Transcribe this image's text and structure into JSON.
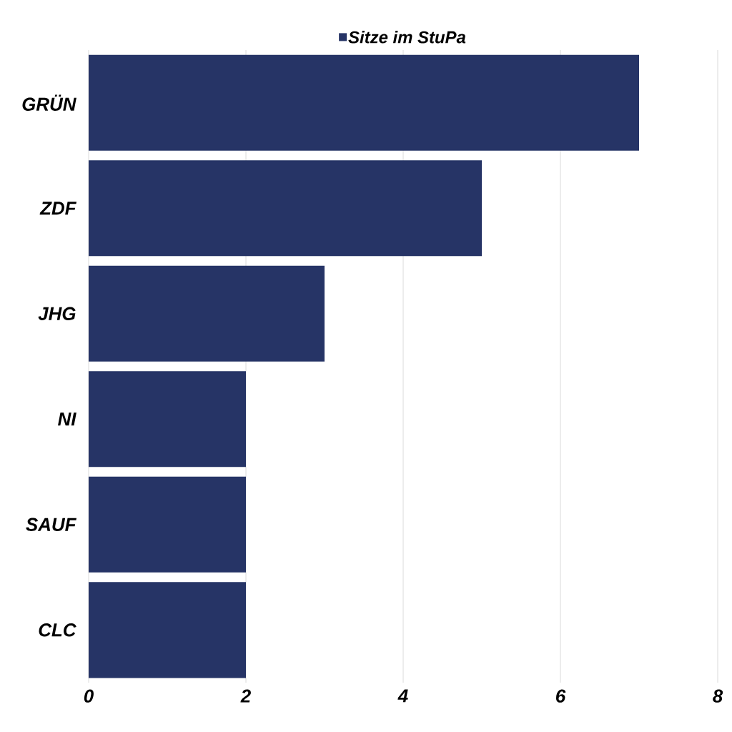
{
  "chart_data": {
    "type": "bar",
    "orientation": "horizontal",
    "categories": [
      "GRÜN",
      "ZDF",
      "JHG",
      "NI",
      "SAUF",
      "CLC"
    ],
    "series": [
      {
        "name": "Sitze im StuPa",
        "color": "#263466",
        "values": [
          7,
          5,
          3,
          2,
          2,
          2
        ]
      }
    ],
    "xlim": [
      0,
      8
    ],
    "xticks": [
      0,
      2,
      4,
      6,
      8
    ],
    "grid": "x",
    "legend": "top"
  }
}
